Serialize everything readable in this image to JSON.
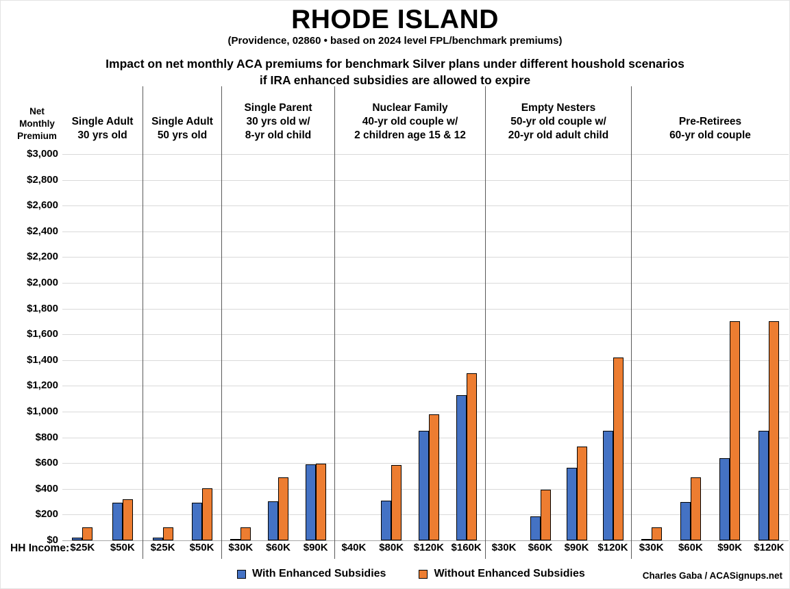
{
  "header": {
    "title": "RHODE ISLAND",
    "subtitle": "(Providence, 02860 • based on 2024 level FPL/benchmark premiums)",
    "heading_line1": "Impact on net monthly ACA premiums for benchmark Silver plans under different houshold scenarios",
    "heading_line2": "if IRA enhanced subsidies are allowed to expire"
  },
  "axis": {
    "y_title": "Net\nMonthly\nPremium",
    "x_title": "HH Income:",
    "tick_labels": [
      "$3,000",
      "$2,800",
      "$2,600",
      "$2,400",
      "$2,200",
      "$2,000",
      "$1,800",
      "$1,600",
      "$1,400",
      "$1,200",
      "$1,000",
      "$800",
      "$600",
      "$400",
      "$200",
      "$0"
    ]
  },
  "legend": {
    "with_label": "With Enhanced Subsidies",
    "without_label": "Without Enhanced Subsidies"
  },
  "credit": "Charles Gaba / ACASignups.net",
  "colors": {
    "with": "#4472C4",
    "without": "#ED7D31",
    "gridline": "#D9D9D9",
    "axis_line": "#A6A6A6",
    "divider": "#595959"
  },
  "chart_data": {
    "type": "bar",
    "title": "Impact on net monthly ACA premiums for benchmark Silver plans under different houshold scenarios if IRA enhanced subsidies are allowed to expire",
    "ylabel": "Net Monthly Premium",
    "xlabel": "HH Income",
    "ylim": [
      0,
      3000
    ],
    "ytick_interval": 200,
    "grid": true,
    "legend_position": "bottom",
    "series_names": [
      "With Enhanced Subsidies",
      "Without Enhanced Subsidies"
    ],
    "groups": [
      {
        "label": "Single Adult\n30 yrs old",
        "categories": [
          "$25K",
          "$50K"
        ],
        "with": [
          20,
          295
        ],
        "without": [
          100,
          320
        ]
      },
      {
        "label": "Single Adult\n50 yrs old",
        "categories": [
          "$25K",
          "$50K"
        ],
        "with": [
          20,
          295
        ],
        "without": [
          100,
          405
        ]
      },
      {
        "label": "Single Parent\n30 yrs old w/\n8-yr old child",
        "categories": [
          "$30K",
          "$60K",
          "$90K"
        ],
        "with": [
          5,
          305,
          590
        ],
        "without": [
          100,
          490,
          595
        ]
      },
      {
        "label": "Nuclear Family\n40-yr old couple w/\n2 children age 15 & 12",
        "categories": [
          "$40K",
          "$80K",
          "$120K",
          "$160K"
        ],
        "with": [
          0,
          310,
          850,
          1130
        ],
        "without": [
          0,
          585,
          980,
          1300
        ]
      },
      {
        "label": "Empty Nesters\n50-yr old couple w/\n20-yr old adult child",
        "categories": [
          "$30K",
          "$60K",
          "$90K",
          "$120K"
        ],
        "with": [
          0,
          185,
          565,
          850
        ],
        "without": [
          0,
          395,
          730,
          1420
        ]
      },
      {
        "label": "Pre-Retirees\n60-yr old couple",
        "categories": [
          "$30K",
          "$60K",
          "$90K",
          "$120K"
        ],
        "with": [
          5,
          300,
          640,
          850
        ],
        "without": [
          100,
          490,
          1700,
          1700
        ]
      }
    ]
  }
}
